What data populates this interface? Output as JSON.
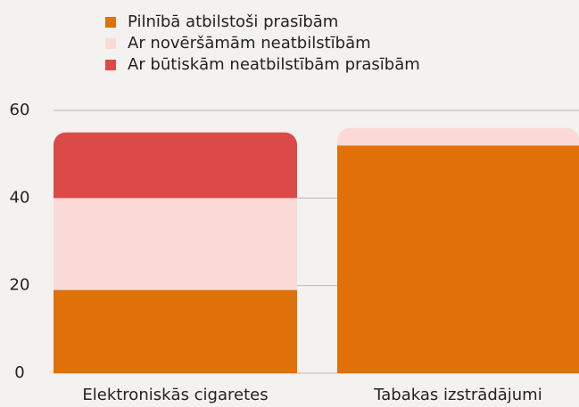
{
  "chart_data": {
    "type": "stacked_bar",
    "categories": [
      "Elektroniskās cigaretes",
      "Tabakas izstrādājumi"
    ],
    "series": [
      {
        "name": "Pilnībā atbilstoši prasībām",
        "color": "#e07008",
        "values": [
          19,
          52
        ]
      },
      {
        "name": "Ar novēršāmām neatbilstībām",
        "color": "#fbd9d6",
        "values": [
          21,
          4
        ]
      },
      {
        "name": "Ar būtiskām neatbilstībām prasībām",
        "color": "#dc4a48",
        "values": [
          15,
          0
        ]
      }
    ],
    "ylim": [
      0,
      60
    ],
    "yticks": [
      0,
      20,
      40,
      60
    ],
    "grid": true
  }
}
